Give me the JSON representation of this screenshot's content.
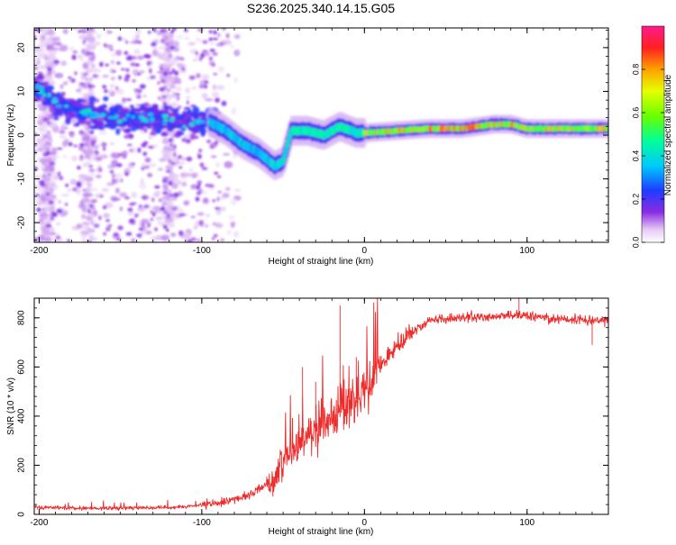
{
  "title": "S236.2025.340.14.15.G05",
  "colors": {
    "snr_line": "#ee2a2a",
    "axis": "#000000",
    "background": "#ffffff"
  },
  "chart_data": [
    {
      "id": "spectrogram",
      "type": "heatmap",
      "xlabel": "Height of straight line (km)",
      "ylabel": "Frequency (Hz)",
      "xlim": [
        -203,
        150
      ],
      "ylim": [
        -24.5,
        24.5
      ],
      "xticks": [
        -200,
        -100,
        0,
        100
      ],
      "yticks": [
        -20,
        -10,
        0,
        10,
        20
      ],
      "colorbar": {
        "label": "Normalized spectral amplitude",
        "range": [
          0,
          1
        ],
        "ticks": [
          0.0,
          0.2,
          0.4,
          0.6,
          0.8
        ],
        "tick_labels": [
          "0.0",
          "0.2",
          "0.4",
          "0.6",
          "0.8"
        ]
      },
      "ridge": {
        "description_points_km_hz": [
          [
            -200,
            11
          ],
          [
            -190,
            7
          ],
          [
            -170,
            5
          ],
          [
            -150,
            4
          ],
          [
            -130,
            3.5
          ],
          [
            -110,
            3
          ],
          [
            -95,
            3
          ],
          [
            -85,
            1
          ],
          [
            -75,
            -2
          ],
          [
            -65,
            -4
          ],
          [
            -55,
            -7
          ],
          [
            -50,
            -6
          ],
          [
            -45,
            1
          ],
          [
            -35,
            1
          ],
          [
            -25,
            0
          ],
          [
            -15,
            2
          ],
          [
            -5,
            0.5
          ],
          [
            0,
            0.5
          ],
          [
            20,
            1
          ],
          [
            40,
            1.5
          ],
          [
            60,
            1.5
          ],
          [
            80,
            2.5
          ],
          [
            90,
            2.5
          ],
          [
            100,
            1.5
          ],
          [
            120,
            1.5
          ],
          [
            150,
            1.5
          ]
        ]
      }
    },
    {
      "id": "snr",
      "type": "line",
      "xlabel": "Height of straight line (km)",
      "ylabel": "SNR (10 * v/v)",
      "xlim": [
        -203,
        150
      ],
      "ylim": [
        0,
        880
      ],
      "xticks": [
        -200,
        -100,
        0,
        100
      ],
      "yticks": [
        0,
        200,
        400,
        600,
        800
      ],
      "trend_points_km_snr": [
        [
          -203,
          30
        ],
        [
          -180,
          25
        ],
        [
          -150,
          25
        ],
        [
          -110,
          30
        ],
        [
          -90,
          45
        ],
        [
          -70,
          80
        ],
        [
          -55,
          150
        ],
        [
          -45,
          250
        ],
        [
          -35,
          320
        ],
        [
          -25,
          380
        ],
        [
          -15,
          420
        ],
        [
          -5,
          470
        ],
        [
          5,
          550
        ],
        [
          15,
          650
        ],
        [
          25,
          720
        ],
        [
          40,
          790
        ],
        [
          60,
          800
        ],
        [
          80,
          805
        ],
        [
          100,
          810
        ],
        [
          120,
          795
        ],
        [
          150,
          790
        ]
      ],
      "spikes_km_snr": [
        [
          -38,
          600
        ],
        [
          -30,
          540
        ],
        [
          -15,
          850
        ],
        [
          -5,
          640
        ],
        [
          95,
          880
        ],
        [
          140,
          690
        ]
      ]
    }
  ]
}
